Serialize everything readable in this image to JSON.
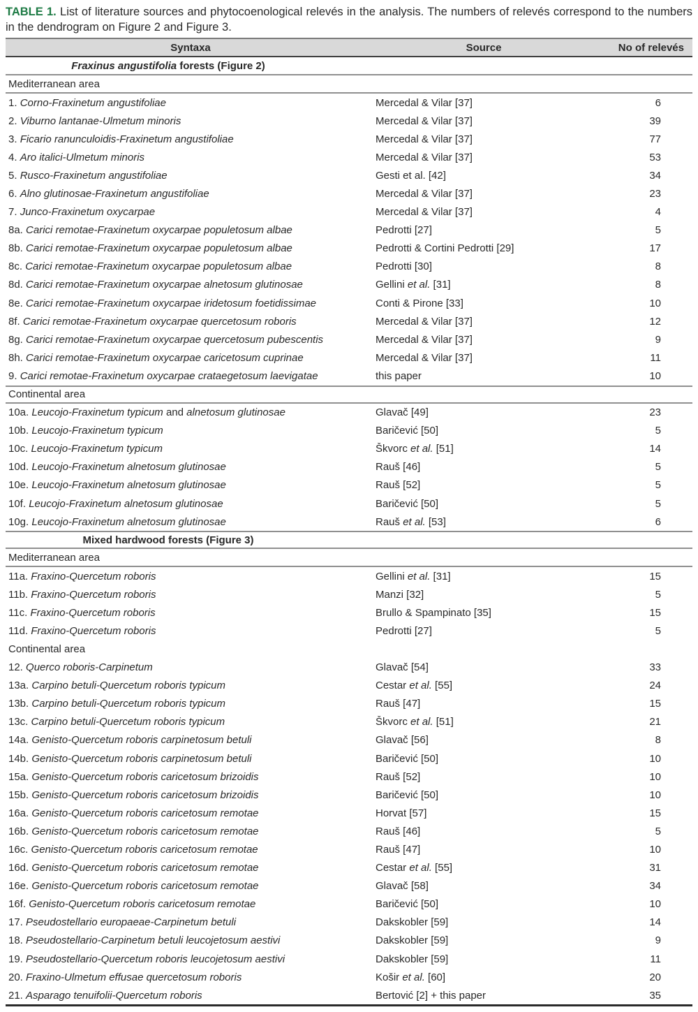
{
  "caption": {
    "label": "TABLE 1.",
    "label_color": "#1e7b45",
    "text": " List of literature sources and phytocoenological relevés in the analysis. The numbers of relevés correspond to the numbers in the dendrogram on Figure 2 and Figure 3."
  },
  "colors": {
    "header_bg": "#d9d9d9",
    "rule_gray": "#8f8f8f",
    "rule_dark": "#3d3d3d",
    "bottom_rule": "#2a2a2a",
    "text": "#282828"
  },
  "table": {
    "headers": [
      "Syntaxa",
      "Source",
      "No of relevés"
    ],
    "blocks": [
      {
        "kind": "section",
        "rule_below": true,
        "segments": [
          {
            "t": "Fraxinus angustifolia",
            "i": true
          },
          {
            "t": " forests (Figure 2)"
          }
        ]
      },
      {
        "kind": "area",
        "label": "Mediterranean area",
        "rule_below": true
      },
      {
        "kind": "row",
        "syntaxa": [
          {
            "t": "1. "
          },
          {
            "t": "Corno-Fraxinetum angustifoliae",
            "i": true
          }
        ],
        "source": [
          {
            "t": "Mercedal & Vilar [37]"
          }
        ],
        "count": "6"
      },
      {
        "kind": "row",
        "syntaxa": [
          {
            "t": "2. "
          },
          {
            "t": "Viburno lantanae-Ulmetum minoris",
            "i": true
          }
        ],
        "source": [
          {
            "t": "Mercedal & Vilar [37]"
          }
        ],
        "count": "39"
      },
      {
        "kind": "row",
        "syntaxa": [
          {
            "t": "3. "
          },
          {
            "t": "Ficario ranunculoidis-Fraxinetum angustifoliae",
            "i": true
          }
        ],
        "source": [
          {
            "t": "Mercedal & Vilar [37]"
          }
        ],
        "count": "77"
      },
      {
        "kind": "row",
        "syntaxa": [
          {
            "t": "4. "
          },
          {
            "t": "Aro italici-Ulmetum minoris",
            "i": true
          }
        ],
        "source": [
          {
            "t": "Mercedal & Vilar [37]"
          }
        ],
        "count": "53"
      },
      {
        "kind": "row",
        "syntaxa": [
          {
            "t": "5. "
          },
          {
            "t": "Rusco-Fraxinetum angustifoliae",
            "i": true
          }
        ],
        "source": [
          {
            "t": "Gesti et al. [42]"
          }
        ],
        "count": "34"
      },
      {
        "kind": "row",
        "syntaxa": [
          {
            "t": "6. "
          },
          {
            "t": "Alno glutinosae-Fraxinetum angustifoliae",
            "i": true
          }
        ],
        "source": [
          {
            "t": "Mercedal & Vilar [37]"
          }
        ],
        "count": "23"
      },
      {
        "kind": "row",
        "syntaxa": [
          {
            "t": "7. "
          },
          {
            "t": "Junco-Fraxinetum oxycarpae",
            "i": true
          }
        ],
        "source": [
          {
            "t": "Mercedal & Vilar [37]"
          }
        ],
        "count": "4"
      },
      {
        "kind": "row",
        "syntaxa": [
          {
            "t": "8a. "
          },
          {
            "t": "Carici remotae-Fraxinetum oxycarpae populetosum albae",
            "i": true
          }
        ],
        "source": [
          {
            "t": "Pedrotti [27]"
          }
        ],
        "count": "5"
      },
      {
        "kind": "row",
        "syntaxa": [
          {
            "t": "8b. "
          },
          {
            "t": "Carici remotae-Fraxinetum oxycarpae populetosum albae",
            "i": true
          }
        ],
        "source": [
          {
            "t": "Pedrotti & Cortini Pedrotti [29]"
          }
        ],
        "count": "17"
      },
      {
        "kind": "row",
        "syntaxa": [
          {
            "t": "8c. "
          },
          {
            "t": "Carici remotae-Fraxinetum oxycarpae populetosum albae",
            "i": true
          }
        ],
        "source": [
          {
            "t": "Pedrotti [30]"
          }
        ],
        "count": "8"
      },
      {
        "kind": "row",
        "syntaxa": [
          {
            "t": "8d. "
          },
          {
            "t": "Carici remotae-Fraxinetum oxycarpae alnetosum glutinosae",
            "i": true
          }
        ],
        "source": [
          {
            "t": "Gellini "
          },
          {
            "t": "et al.",
            "i": true
          },
          {
            "t": " [31]"
          }
        ],
        "count": "8"
      },
      {
        "kind": "row",
        "syntaxa": [
          {
            "t": "8e. "
          },
          {
            "t": "Carici remotae-Fraxinetum oxycarpae iridetosum foetidissimae",
            "i": true
          }
        ],
        "source": [
          {
            "t": "Conti & Pirone [33]"
          }
        ],
        "count": "10"
      },
      {
        "kind": "row",
        "syntaxa": [
          {
            "t": "8f. "
          },
          {
            "t": "Carici remotae-Fraxinetum oxycarpae quercetosum roboris",
            "i": true
          }
        ],
        "source": [
          {
            "t": "Mercedal & Vilar [37]"
          }
        ],
        "count": "12"
      },
      {
        "kind": "row",
        "syntaxa": [
          {
            "t": "8g. "
          },
          {
            "t": "Carici remotae-Fraxinetum oxycarpae quercetosum pubescentis",
            "i": true
          }
        ],
        "source": [
          {
            "t": "Mercedal & Vilar [37]"
          }
        ],
        "count": "9"
      },
      {
        "kind": "row",
        "syntaxa": [
          {
            "t": "8h. "
          },
          {
            "t": "Carici remotae-Fraxinetum oxycarpae caricetosum cuprinae",
            "i": true
          }
        ],
        "source": [
          {
            "t": "Mercedal & Vilar [37]"
          }
        ],
        "count": "11"
      },
      {
        "kind": "row",
        "syntaxa": [
          {
            "t": "9. "
          },
          {
            "t": "Carici remotae-Fraxinetum oxycarpae crataegetosum laevigatae",
            "i": true
          }
        ],
        "source": [
          {
            "t": "this paper"
          }
        ],
        "count": "10"
      },
      {
        "kind": "area",
        "label": "Continental area",
        "rule_above": true,
        "rule_below": true
      },
      {
        "kind": "row",
        "syntaxa": [
          {
            "t": "10a. "
          },
          {
            "t": "Leucojo-Fraxinetum typicum",
            "i": true
          },
          {
            "t": " and "
          },
          {
            "t": "alnetosum glutinosae",
            "i": true
          }
        ],
        "source": [
          {
            "t": "Glavač [49]"
          }
        ],
        "count": "23"
      },
      {
        "kind": "row",
        "syntaxa": [
          {
            "t": "10b. "
          },
          {
            "t": "Leucojo-Fraxinetum typicum",
            "i": true
          }
        ],
        "source": [
          {
            "t": "Baričević [50]"
          }
        ],
        "count": "5"
      },
      {
        "kind": "row",
        "syntaxa": [
          {
            "t": "10c. "
          },
          {
            "t": "Leucojo-Fraxinetum typicum",
            "i": true
          }
        ],
        "source": [
          {
            "t": "Škvorc "
          },
          {
            "t": "et al.",
            "i": true
          },
          {
            "t": " [51]"
          }
        ],
        "count": "14"
      },
      {
        "kind": "row",
        "syntaxa": [
          {
            "t": "10d. "
          },
          {
            "t": "Leucojo-Fraxinetum alnetosum glutinosae",
            "i": true
          }
        ],
        "source": [
          {
            "t": "Rauš [46]"
          }
        ],
        "count": "5"
      },
      {
        "kind": "row",
        "syntaxa": [
          {
            "t": "10e. "
          },
          {
            "t": "Leucojo-Fraxinetum alnetosum glutinosae",
            "i": true
          }
        ],
        "source": [
          {
            "t": "Rauš [52]"
          }
        ],
        "count": "5"
      },
      {
        "kind": "row",
        "syntaxa": [
          {
            "t": "10f. "
          },
          {
            "t": "Leucojo-Fraxinetum alnetosum glutinosae",
            "i": true
          }
        ],
        "source": [
          {
            "t": "Baričević [50]"
          }
        ],
        "count": "5"
      },
      {
        "kind": "row",
        "syntaxa": [
          {
            "t": "10g. "
          },
          {
            "t": "Leucojo-Fraxinetum alnetosum glutinosae",
            "i": true
          }
        ],
        "source": [
          {
            "t": "Rauš "
          },
          {
            "t": "et al.",
            "i": true
          },
          {
            "t": " [53]"
          }
        ],
        "count": "6"
      },
      {
        "kind": "section",
        "rule_above": true,
        "rule_below": true,
        "segments": [
          {
            "t": "Mixed hardwood forests (Figure 3)"
          }
        ]
      },
      {
        "kind": "area",
        "label": "Mediterranean area",
        "rule_below": true
      },
      {
        "kind": "row",
        "syntaxa": [
          {
            "t": "11a. "
          },
          {
            "t": "Fraxino-Quercetum roboris",
            "i": true
          }
        ],
        "source": [
          {
            "t": "Gellini "
          },
          {
            "t": "et al.",
            "i": true
          },
          {
            "t": " [31]"
          }
        ],
        "count": "15"
      },
      {
        "kind": "row",
        "syntaxa": [
          {
            "t": "11b. "
          },
          {
            "t": "Fraxino-Quercetum roboris",
            "i": true
          }
        ],
        "source": [
          {
            "t": "Manzi [32]"
          }
        ],
        "count": "5"
      },
      {
        "kind": "row",
        "syntaxa": [
          {
            "t": "11c. "
          },
          {
            "t": "Fraxino-Quercetum roboris",
            "i": true
          }
        ],
        "source": [
          {
            "t": "Brullo & Spampinato [35]"
          }
        ],
        "count": "15"
      },
      {
        "kind": "row",
        "syntaxa": [
          {
            "t": "11d. "
          },
          {
            "t": "Fraxino-Quercetum roboris",
            "i": true
          }
        ],
        "source": [
          {
            "t": "Pedrotti [27]"
          }
        ],
        "count": "5"
      },
      {
        "kind": "area",
        "label": "Continental area"
      },
      {
        "kind": "row",
        "syntaxa": [
          {
            "t": "12. "
          },
          {
            "t": "Querco roboris-Carpinetum",
            "i": true
          }
        ],
        "source": [
          {
            "t": "Glavač [54]"
          }
        ],
        "count": "33"
      },
      {
        "kind": "row",
        "syntaxa": [
          {
            "t": "13a. "
          },
          {
            "t": "Carpino betuli-Quercetum roboris typicum",
            "i": true
          }
        ],
        "source": [
          {
            "t": "Cestar "
          },
          {
            "t": "et al.",
            "i": true
          },
          {
            "t": " [55]"
          }
        ],
        "count": "24"
      },
      {
        "kind": "row",
        "syntaxa": [
          {
            "t": "13b. "
          },
          {
            "t": "Carpino betuli-Quercetum roboris typicum",
            "i": true
          }
        ],
        "source": [
          {
            "t": "Rauš [47]"
          }
        ],
        "count": "15"
      },
      {
        "kind": "row",
        "syntaxa": [
          {
            "t": "13c. "
          },
          {
            "t": "Carpino betuli-Quercetum roboris typicum",
            "i": true
          }
        ],
        "source": [
          {
            "t": "Škvorc "
          },
          {
            "t": "et al.",
            "i": true
          },
          {
            "t": " [51]"
          }
        ],
        "count": "21"
      },
      {
        "kind": "row",
        "syntaxa": [
          {
            "t": "14a. "
          },
          {
            "t": "Genisto-Quercetum roboris carpinetosum betuli",
            "i": true
          }
        ],
        "source": [
          {
            "t": "Glavač [56]"
          }
        ],
        "count": "8"
      },
      {
        "kind": "row",
        "syntaxa": [
          {
            "t": "14b. "
          },
          {
            "t": "Genisto-Quercetum roboris carpinetosum betuli",
            "i": true
          }
        ],
        "source": [
          {
            "t": "Baričević [50]"
          }
        ],
        "count": "10"
      },
      {
        "kind": "row",
        "syntaxa": [
          {
            "t": "15a. "
          },
          {
            "t": "Genisto-Quercetum roboris caricetosum brizoidis",
            "i": true
          }
        ],
        "source": [
          {
            "t": "Rauš [52]"
          }
        ],
        "count": "10"
      },
      {
        "kind": "row",
        "syntaxa": [
          {
            "t": "15b. "
          },
          {
            "t": "Genisto-Quercetum roboris caricetosum brizoidis",
            "i": true
          }
        ],
        "source": [
          {
            "t": "Baričević [50]"
          }
        ],
        "count": "10"
      },
      {
        "kind": "row",
        "syntaxa": [
          {
            "t": "16a. "
          },
          {
            "t": "Genisto-Quercetum roboris caricetosum remotae",
            "i": true
          }
        ],
        "source": [
          {
            "t": "Horvat [57]"
          }
        ],
        "count": "15"
      },
      {
        "kind": "row",
        "syntaxa": [
          {
            "t": "16b. "
          },
          {
            "t": "Genisto-Quercetum roboris caricetosum remotae",
            "i": true
          }
        ],
        "source": [
          {
            "t": "Rauš [46]"
          }
        ],
        "count": "5"
      },
      {
        "kind": "row",
        "syntaxa": [
          {
            "t": "16c. "
          },
          {
            "t": "Genisto-Quercetum roboris caricetosum remotae",
            "i": true
          }
        ],
        "source": [
          {
            "t": "Rauš [47]"
          }
        ],
        "count": "10"
      },
      {
        "kind": "row",
        "syntaxa": [
          {
            "t": "16d. "
          },
          {
            "t": "Genisto-Quercetum roboris caricetosum remotae",
            "i": true
          }
        ],
        "source": [
          {
            "t": "Cestar "
          },
          {
            "t": "et al.",
            "i": true
          },
          {
            "t": " [55]"
          }
        ],
        "count": "31"
      },
      {
        "kind": "row",
        "syntaxa": [
          {
            "t": "16e. "
          },
          {
            "t": "Genisto-Quercetum roboris caricetosum remotae",
            "i": true
          }
        ],
        "source": [
          {
            "t": "Glavač [58]"
          }
        ],
        "count": "34"
      },
      {
        "kind": "row",
        "syntaxa": [
          {
            "t": "16f. "
          },
          {
            "t": "Genisto-Quercetum roboris caricetosum remotae",
            "i": true
          }
        ],
        "source": [
          {
            "t": "Baričević [50]"
          }
        ],
        "count": "10"
      },
      {
        "kind": "row",
        "syntaxa": [
          {
            "t": "17. "
          },
          {
            "t": "Pseudostellario europaeae-Carpinetum betuli",
            "i": true
          }
        ],
        "source": [
          {
            "t": "Dakskobler [59]"
          }
        ],
        "count": "14"
      },
      {
        "kind": "row",
        "syntaxa": [
          {
            "t": "18. "
          },
          {
            "t": "Pseudostellario-Carpinetum betuli leucojetosum aestivi",
            "i": true
          }
        ],
        "source": [
          {
            "t": "Dakskobler [59]"
          }
        ],
        "count": "9"
      },
      {
        "kind": "row",
        "syntaxa": [
          {
            "t": "19. "
          },
          {
            "t": "Pseudostellario-Quercetum roboris leucojetosum aestivi",
            "i": true
          }
        ],
        "source": [
          {
            "t": "Dakskobler [59]"
          }
        ],
        "count": "11"
      },
      {
        "kind": "row",
        "syntaxa": [
          {
            "t": "20. "
          },
          {
            "t": "Fraxino-Ulmetum effusae quercetosum roboris",
            "i": true
          }
        ],
        "source": [
          {
            "t": "Košir "
          },
          {
            "t": "et al.",
            "i": true
          },
          {
            "t": " [60]"
          }
        ],
        "count": "20"
      },
      {
        "kind": "row",
        "syntaxa": [
          {
            "t": "21. "
          },
          {
            "t": "Asparago tenuifolii-Quercetum roboris",
            "i": true
          }
        ],
        "source": [
          {
            "t": "Bertović [2] + this paper"
          }
        ],
        "count": "35"
      }
    ]
  }
}
